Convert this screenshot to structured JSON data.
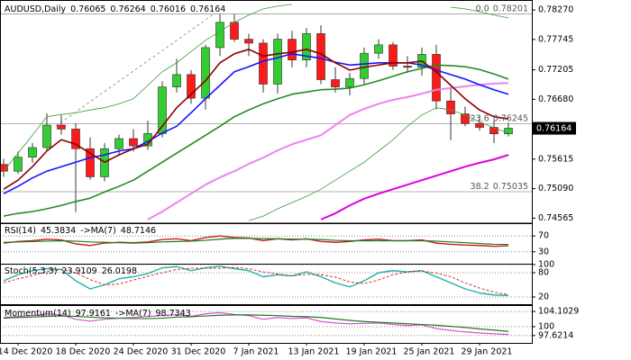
{
  "chart_data": [
    {
      "type": "candlestick",
      "title": "AUDUSD,Daily",
      "categories": [
        null,
        "14 Dec 2020",
        null,
        null,
        null,
        "18 Dec 2020",
        null,
        null,
        null,
        "24 Dec 2020",
        null,
        null,
        null,
        "31 Dec 2020",
        null,
        null,
        null,
        "7 Jan 2021",
        null,
        null,
        null,
        "13 Jan 2021",
        null,
        null,
        null,
        "19 Jan 2021",
        null,
        null,
        null,
        "25 Jan 2021",
        null,
        null,
        null,
        "29 Jan 2021",
        null,
        null
      ],
      "open": [
        0.7552,
        0.754,
        0.7565,
        0.7582,
        0.7622,
        0.7615,
        0.758,
        0.753,
        0.758,
        0.7598,
        0.7585,
        0.7607,
        0.769,
        0.7712,
        0.767,
        0.776,
        0.7805,
        0.7775,
        0.7768,
        0.7695,
        0.7775,
        0.7738,
        0.7785,
        0.7703,
        0.769,
        0.7705,
        0.775,
        0.7765,
        0.7727,
        0.7725,
        0.7748,
        0.7665,
        0.7642,
        0.7625,
        0.7618,
        0.76065
      ],
      "high": [
        0.7562,
        0.7575,
        0.759,
        0.7643,
        0.764,
        0.7625,
        0.76,
        0.759,
        0.7605,
        0.7615,
        0.763,
        0.77,
        0.774,
        0.772,
        0.7765,
        0.782,
        0.782,
        0.7785,
        0.7775,
        0.7785,
        0.779,
        0.7795,
        0.78,
        0.7725,
        0.7715,
        0.776,
        0.7775,
        0.777,
        0.7745,
        0.776,
        0.7765,
        0.769,
        0.7655,
        0.764,
        0.763,
        0.76264
      ],
      "low": [
        0.753,
        0.7535,
        0.7555,
        0.7575,
        0.7605,
        0.7467,
        0.7525,
        0.7522,
        0.757,
        0.7575,
        0.7578,
        0.76,
        0.768,
        0.766,
        0.765,
        0.7745,
        0.777,
        0.7745,
        0.768,
        0.7678,
        0.7725,
        0.7725,
        0.7695,
        0.768,
        0.7675,
        0.7695,
        0.774,
        0.772,
        0.7715,
        0.771,
        0.765,
        0.7595,
        0.762,
        0.7612,
        0.759,
        0.76016
      ],
      "close": [
        0.754,
        0.7565,
        0.7582,
        0.7622,
        0.7615,
        0.758,
        0.753,
        0.758,
        0.7598,
        0.7585,
        0.7607,
        0.769,
        0.7712,
        0.767,
        0.776,
        0.7805,
        0.7775,
        0.7768,
        0.7695,
        0.7775,
        0.7738,
        0.7785,
        0.7703,
        0.769,
        0.7705,
        0.775,
        0.7765,
        0.7727,
        0.7725,
        0.7748,
        0.7665,
        0.7642,
        0.7625,
        0.7618,
        0.76065,
        0.76164
      ],
      "up_color": "#32cd32",
      "down_color": "#ff1a1a",
      "series": [
        {
          "color": "#3a9d3a",
          "width": 0.8,
          "values": [
            0.754,
            0.7572,
            0.7604,
            0.7637,
            0.7641,
            0.7644,
            0.7649,
            0.7653,
            0.766,
            0.7669,
            0.7693,
            0.7717,
            0.7733,
            0.7753,
            0.7773,
            0.7789,
            0.7805,
            0.7818,
            0.7829,
            0.7834,
            0.7837,
            null,
            null,
            null,
            null,
            null,
            null,
            null,
            null,
            null,
            null,
            0.7832,
            0.7829,
            0.7824,
            0.7818,
            0.7813
          ]
        },
        {
          "color": "#3a9d3a",
          "width": 0.8,
          "values": [
            null,
            null,
            null,
            null,
            null,
            null,
            null,
            null,
            null,
            null,
            null,
            null,
            null,
            null,
            null,
            null,
            null,
            0.7452,
            0.746,
            0.7473,
            0.7484,
            0.7495,
            0.7508,
            0.7524,
            0.754,
            0.7556,
            0.7576,
            0.7596,
            0.762,
            0.764,
            0.7653,
            0.7649,
            0.764,
            0.7628,
            0.7617,
            0.7608
          ]
        },
        {
          "color": "#ee82ee",
          "width": 2,
          "values": [
            null,
            null,
            null,
            null,
            null,
            null,
            null,
            null,
            null,
            null,
            0.7454,
            0.7468,
            0.7484,
            0.75,
            0.7516,
            0.7529,
            0.754,
            0.7553,
            0.7564,
            0.7577,
            0.7588,
            0.7596,
            0.7604,
            0.7622,
            0.764,
            0.7651,
            0.766,
            0.7667,
            0.7672,
            0.7678,
            0.7685,
            0.7688,
            0.7691,
            0.7694,
            0.7696,
            0.7697
          ]
        },
        {
          "color": "#e000e0",
          "width": 2,
          "values": [
            null,
            null,
            null,
            null,
            null,
            null,
            null,
            null,
            null,
            null,
            null,
            null,
            null,
            null,
            null,
            null,
            null,
            null,
            null,
            null,
            null,
            null,
            0.7454,
            0.7465,
            0.7479,
            0.7491,
            0.75,
            0.7508,
            0.7516,
            0.7524,
            0.7532,
            0.754,
            0.7548,
            0.7555,
            0.7561,
            0.7569
          ]
        },
        {
          "color": "#228b22",
          "width": 1.6,
          "values": [
            0.746,
            0.7465,
            0.7468,
            0.7473,
            0.7479,
            0.7486,
            0.7492,
            0.7503,
            0.7513,
            0.7524,
            0.754,
            0.7556,
            0.7572,
            0.7588,
            0.7604,
            0.762,
            0.7637,
            0.7649,
            0.766,
            0.7669,
            0.7677,
            0.7681,
            0.7685,
            0.7686,
            0.7688,
            0.7694,
            0.7701,
            0.7709,
            0.7717,
            0.7723,
            0.7729,
            0.7728,
            0.7726,
            0.7721,
            0.7713,
            0.7704
          ]
        },
        {
          "color": "#1414ff",
          "width": 1.6,
          "values": [
            0.75,
            0.7513,
            0.7528,
            0.754,
            0.7548,
            0.7556,
            0.7564,
            0.7569,
            0.7576,
            0.758,
            0.7593,
            0.7608,
            0.762,
            0.7644,
            0.7669,
            0.7693,
            0.7717,
            0.7726,
            0.7736,
            0.7742,
            0.7749,
            0.7745,
            0.7741,
            0.7734,
            0.7729,
            0.7731,
            0.7733,
            0.7733,
            0.7733,
            0.7729,
            0.772,
            0.7712,
            0.7704,
            0.7694,
            0.7685,
            0.7677
          ]
        },
        {
          "color": "#8b0000",
          "width": 1.6,
          "values": [
            0.7508,
            0.7524,
            0.7548,
            0.7576,
            0.7596,
            0.7588,
            0.7572,
            0.7556,
            0.7569,
            0.758,
            0.7588,
            0.762,
            0.7653,
            0.7677,
            0.7701,
            0.7733,
            0.7749,
            0.7757,
            0.7745,
            0.7749,
            0.7752,
            0.7757,
            0.7749,
            0.7733,
            0.772,
            0.7725,
            0.7729,
            0.7733,
            0.7733,
            0.7736,
            0.7717,
            0.7693,
            0.7669,
            0.7649,
            0.7637,
            0.7633
          ]
        }
      ],
      "fib_levels": [
        {
          "ratio": {
            "value": 0,
            "label": "0.0"
          },
          "price": 0.78201
        },
        {
          "ratio": 23.6,
          "price": 0.76245
        },
        {
          "ratio": 38.2,
          "price": 0.75035
        }
      ],
      "ylim": [
        0.7449,
        0.784
      ],
      "yticks": [
        {
          "value": 0.7827,
          "label": "0.78270"
        },
        0.77745,
        0.77205,
        {
          "value": 0.7668,
          "label": "0.76680"
        },
        0.75615,
        {
          "value": 0.7509,
          "label": "0.75090"
        },
        0.74565
      ],
      "grid": false
    },
    {
      "type": "line",
      "series": [
        {
          "name": "RSI(14)",
          "color": "#c81e1e",
          "width": 1.4,
          "values": [
            52,
            56,
            58,
            62,
            60,
            50,
            46,
            52,
            54,
            53,
            55,
            61,
            63,
            58,
            66,
            70,
            66,
            65,
            58,
            63,
            60,
            63,
            56,
            54,
            56,
            60,
            62,
            58,
            58,
            60,
            52,
            49,
            47,
            46,
            44,
            45.3834
          ]
        },
        {
          "name": "->MA(7)",
          "color": "#1e7a1e",
          "width": 1.2,
          "values": [
            54,
            55,
            56,
            57,
            58,
            57,
            55,
            54,
            53,
            52,
            53,
            55,
            56,
            57,
            59,
            62,
            64,
            64,
            63,
            63,
            62,
            62,
            61,
            59,
            58,
            58,
            58,
            58,
            58,
            58,
            57,
            55,
            53,
            51,
            49,
            48.7146
          ]
        }
      ],
      "ylim": [
        0,
        100
      ],
      "yticks": [
        70,
        30
      ],
      "grid": true
    },
    {
      "type": "line",
      "title": "Stoch(5,3,3)",
      "series": [
        {
          "color": "#20b2aa",
          "width": 1.4,
          "values": [
            60,
            75,
            85,
            90,
            88,
            60,
            40,
            50,
            65,
            70,
            78,
            92,
            95,
            85,
            92,
            96,
            90,
            85,
            70,
            75,
            72,
            82,
            70,
            55,
            45,
            60,
            80,
            85,
            82,
            85,
            70,
            55,
            40,
            30,
            25,
            23.9109
          ]
        },
        {
          "color": "#d02020",
          "width": 0.9,
          "style": "dashed",
          "values": [
            55,
            65,
            73,
            83,
            88,
            80,
            63,
            50,
            52,
            62,
            71,
            80,
            88,
            91,
            91,
            91,
            93,
            90,
            82,
            77,
            72,
            76,
            75,
            69,
            57,
            53,
            62,
            75,
            82,
            84,
            79,
            70,
            55,
            42,
            32,
            26.0198
          ]
        }
      ],
      "ylim": [
        0,
        100
      ],
      "yticks": [
        100,
        80,
        20
      ],
      "grid": true
    },
    {
      "type": "line",
      "series": [
        {
          "name": "Momentum(14)",
          "color": "#da50da",
          "width": 1.2,
          "values": [
            102.5,
            102.8,
            103.0,
            103.5,
            103.2,
            102.0,
            101.5,
            102.0,
            102.3,
            102.5,
            102.8,
            103.0,
            103.3,
            102.8,
            103.5,
            103.8,
            103.3,
            103.0,
            102.0,
            102.5,
            102.2,
            102.4,
            101.4,
            101.0,
            100.8,
            100.9,
            101.0,
            100.6,
            100.3,
            100.5,
            99.5,
            99.0,
            98.6,
            98.3,
            98.1,
            97.9161
          ]
        },
        {
          "name": "->MA(7)",
          "color": "#1e7a1e",
          "width": 1.2,
          "values": [
            102.3,
            102.5,
            102.6,
            102.8,
            102.9,
            102.8,
            102.6,
            102.4,
            102.3,
            102.2,
            102.2,
            102.3,
            102.6,
            102.7,
            102.9,
            103.1,
            103.2,
            103.2,
            103.1,
            103.0,
            102.8,
            102.7,
            102.5,
            102.1,
            101.7,
            101.4,
            101.2,
            101.0,
            100.8,
            100.6,
            100.4,
            100.1,
            99.8,
            99.4,
            99.1,
            98.7343
          ]
        }
      ],
      "ylim": [
        95.63,
        105.35
      ],
      "yticks": [
        104.1029,
        100,
        97.6214
      ],
      "grid": true
    }
  ]
}
